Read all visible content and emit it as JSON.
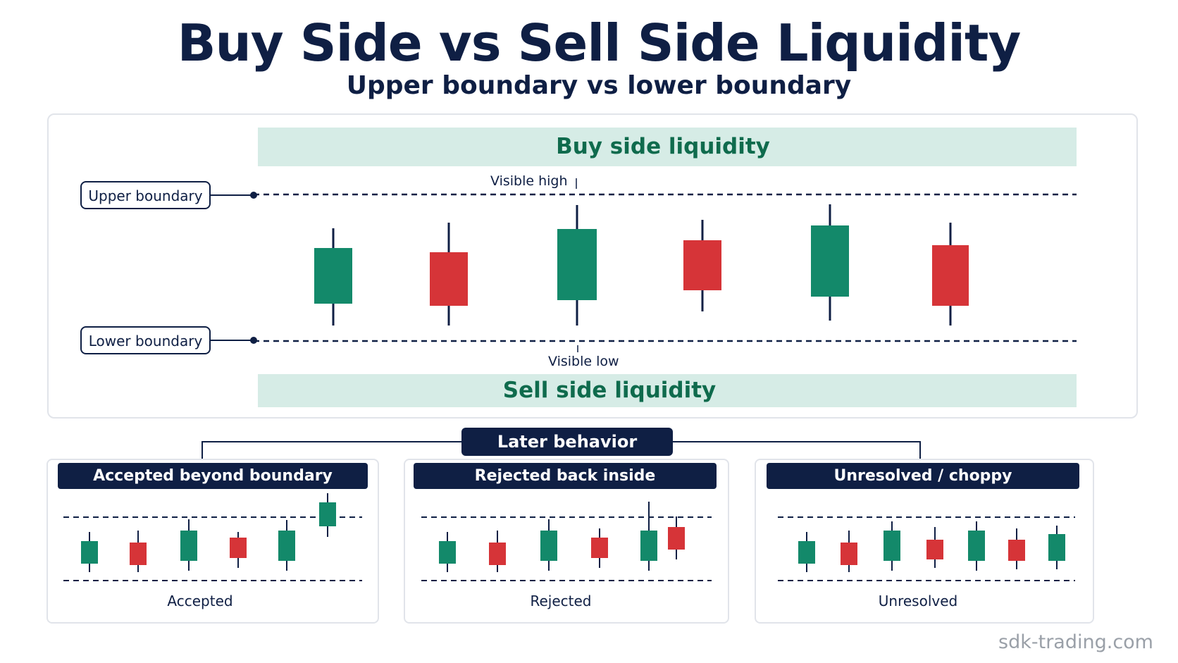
{
  "title": "Buy Side vs Sell Side Liquidity",
  "subtitle": "Upper boundary vs lower boundary",
  "main": {
    "buy_band": "Buy side liquidity",
    "sell_band": "Sell side liquidity",
    "upper_label": "Upper boundary",
    "lower_label": "Lower boundary",
    "visible_high": "Visible high",
    "visible_low": "Visible low"
  },
  "later": {
    "label": "Later behavior"
  },
  "scenarios": [
    {
      "header": "Accepted beyond boundary",
      "footer": "Accepted"
    },
    {
      "header": "Rejected back inside",
      "footer": "Rejected"
    },
    {
      "header": "Unresolved / choppy",
      "footer": "Unresolved"
    }
  ],
  "colors": {
    "navy": "#0f1f44",
    "bull": "#13896a",
    "bear": "#d63438",
    "band": "#d6ece6",
    "band_text": "#0f6b4d",
    "border": "#e1e4ea"
  },
  "watermark": "sdk-trading.com"
}
